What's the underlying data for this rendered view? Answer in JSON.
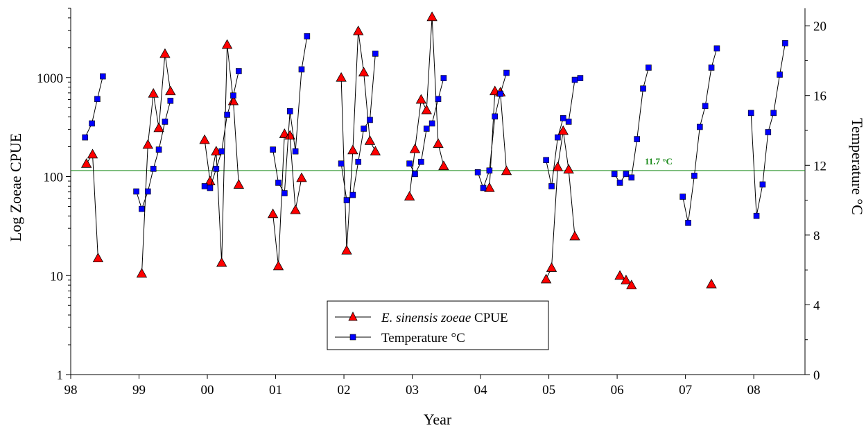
{
  "chart_data": {
    "type": "line",
    "xlabel": "Year",
    "ylabel_left": "Log Zoeae CPUE",
    "ylabel_right": "Temperature °C",
    "x_scale": "year-offset (year - 1998)",
    "xlim": [
      0,
      10.75
    ],
    "x_tick_labels": [
      "98",
      "99",
      "00",
      "01",
      "02",
      "03",
      "04",
      "05",
      "06",
      "07",
      "08"
    ],
    "y_left_scale": "log",
    "y_left_lim": [
      1,
      5000
    ],
    "y_left_ticks": [
      1,
      10,
      100,
      1000
    ],
    "y_left_tick_labels": [
      "1",
      "10",
      "100",
      "1000"
    ],
    "y_right_lim": [
      0,
      21
    ],
    "y_right_ticks": [
      0,
      4,
      8,
      12,
      16,
      20
    ],
    "y_right_tick_labels": [
      "0",
      "4",
      "8",
      "12",
      "16",
      "20"
    ],
    "reference_line": {
      "axis": "right",
      "value": 11.7,
      "label": "11.7 °C",
      "color": "#1a8a1a"
    },
    "legend_position": "bottom-center",
    "series": [
      {
        "name_italic": "E. sinensis zoeae",
        "name_suffix": " CPUE",
        "axis": "left",
        "marker": "triangle",
        "color": "#ff0000",
        "segments": [
          [
            [
              0.23,
              135
            ],
            [
              0.32,
              168
            ],
            [
              0.4,
              15
            ]
          ],
          [
            [
              1.04,
              10.5
            ],
            [
              1.13,
              210
            ],
            [
              1.21,
              690
            ],
            [
              1.29,
              310
            ],
            [
              1.38,
              1740
            ],
            [
              1.46,
              730
            ]
          ],
          [
            [
              1.96,
              235
            ],
            [
              2.04,
              90
            ],
            [
              2.13,
              180
            ],
            [
              2.21,
              13.5
            ],
            [
              2.29,
              2150
            ],
            [
              2.38,
              580
            ],
            [
              2.46,
              83
            ]
          ],
          [
            [
              2.96,
              42
            ],
            [
              3.04,
              12.5
            ],
            [
              3.13,
              270
            ],
            [
              3.21,
              260
            ],
            [
              3.29,
              46
            ],
            [
              3.38,
              97
            ]
          ],
          [
            [
              3.96,
              1000
            ],
            [
              4.04,
              18
            ],
            [
              4.13,
              185
            ],
            [
              4.21,
              2950
            ],
            [
              4.29,
              1130
            ],
            [
              4.38,
              230
            ],
            [
              4.46,
              180
            ]
          ],
          [
            [
              4.96,
              63
            ],
            [
              5.04,
              190
            ],
            [
              5.13,
              600
            ],
            [
              5.21,
              470
            ],
            [
              5.29,
              4100
            ],
            [
              5.38,
              215
            ],
            [
              5.46,
              128
            ]
          ],
          [
            [
              6.13,
              77
            ],
            [
              6.21,
              730
            ],
            [
              6.29,
              710
            ],
            [
              6.38,
              114
            ]
          ],
          [
            [
              6.96,
              9.2
            ],
            [
              7.04,
              12
            ],
            [
              7.13,
              125
            ],
            [
              7.21,
              290
            ],
            [
              7.29,
              118
            ],
            [
              7.38,
              25
            ]
          ],
          [
            [
              8.04,
              10
            ],
            [
              8.13,
              9
            ],
            [
              8.21,
              8
            ]
          ],
          [
            [
              9.38,
              8.2
            ]
          ]
        ]
      },
      {
        "name": "Temperature °C",
        "axis": "right",
        "marker": "square",
        "color": "#0000ff",
        "segments": [
          [
            [
              0.21,
              13.6
            ],
            [
              0.31,
              14.4
            ],
            [
              0.39,
              15.8
            ],
            [
              0.47,
              17.1
            ]
          ],
          [
            [
              0.96,
              10.5
            ],
            [
              1.04,
              9.5
            ],
            [
              1.13,
              10.5
            ],
            [
              1.21,
              11.8
            ],
            [
              1.29,
              12.9
            ],
            [
              1.38,
              14.5
            ],
            [
              1.46,
              15.7
            ]
          ],
          [
            [
              1.96,
              10.8
            ],
            [
              2.04,
              10.7
            ],
            [
              2.13,
              11.8
            ],
            [
              2.21,
              12.8
            ],
            [
              2.29,
              14.9
            ],
            [
              2.38,
              16.0
            ],
            [
              2.46,
              17.4
            ]
          ],
          [
            [
              2.96,
              12.9
            ],
            [
              3.04,
              11.0
            ],
            [
              3.13,
              10.4
            ],
            [
              3.21,
              15.1
            ],
            [
              3.29,
              12.8
            ],
            [
              3.38,
              17.5
            ],
            [
              3.46,
              19.4
            ]
          ],
          [
            [
              3.96,
              12.1
            ],
            [
              4.04,
              10.0
            ],
            [
              4.13,
              10.3
            ],
            [
              4.21,
              12.2
            ],
            [
              4.29,
              14.1
            ],
            [
              4.38,
              14.6
            ],
            [
              4.46,
              18.4
            ]
          ],
          [
            [
              4.96,
              12.1
            ],
            [
              5.04,
              11.5
            ],
            [
              5.13,
              12.2
            ],
            [
              5.21,
              14.1
            ],
            [
              5.29,
              14.4
            ],
            [
              5.38,
              15.8
            ],
            [
              5.46,
              17.0
            ]
          ],
          [
            [
              5.96,
              11.6
            ],
            [
              6.04,
              10.7
            ],
            [
              6.13,
              11.7
            ],
            [
              6.21,
              14.8
            ],
            [
              6.29,
              16.1
            ],
            [
              6.38,
              17.3
            ]
          ],
          [
            [
              6.96,
              12.3
            ],
            [
              7.04,
              10.8
            ],
            [
              7.13,
              13.6
            ],
            [
              7.21,
              14.7
            ],
            [
              7.29,
              14.5
            ],
            [
              7.38,
              16.9
            ],
            [
              7.46,
              17.0
            ]
          ],
          [
            [
              7.96,
              11.5
            ],
            [
              8.04,
              11.0
            ],
            [
              8.13,
              11.5
            ],
            [
              8.21,
              11.3
            ],
            [
              8.29,
              13.5
            ],
            [
              8.38,
              16.4
            ],
            [
              8.46,
              17.6
            ]
          ],
          [
            [
              8.96,
              10.2
            ],
            [
              9.04,
              8.7
            ],
            [
              9.13,
              11.4
            ],
            [
              9.21,
              14.2
            ],
            [
              9.29,
              15.4
            ],
            [
              9.38,
              17.6
            ],
            [
              9.46,
              18.7
            ]
          ],
          [
            [
              9.96,
              15.0
            ],
            [
              10.04,
              9.1
            ],
            [
              10.13,
              10.9
            ],
            [
              10.21,
              13.9
            ],
            [
              10.29,
              15.0
            ],
            [
              10.38,
              17.2
            ],
            [
              10.46,
              19.0
            ]
          ]
        ]
      }
    ],
    "colors": {
      "axis": "#000000",
      "line": "#000000"
    }
  }
}
